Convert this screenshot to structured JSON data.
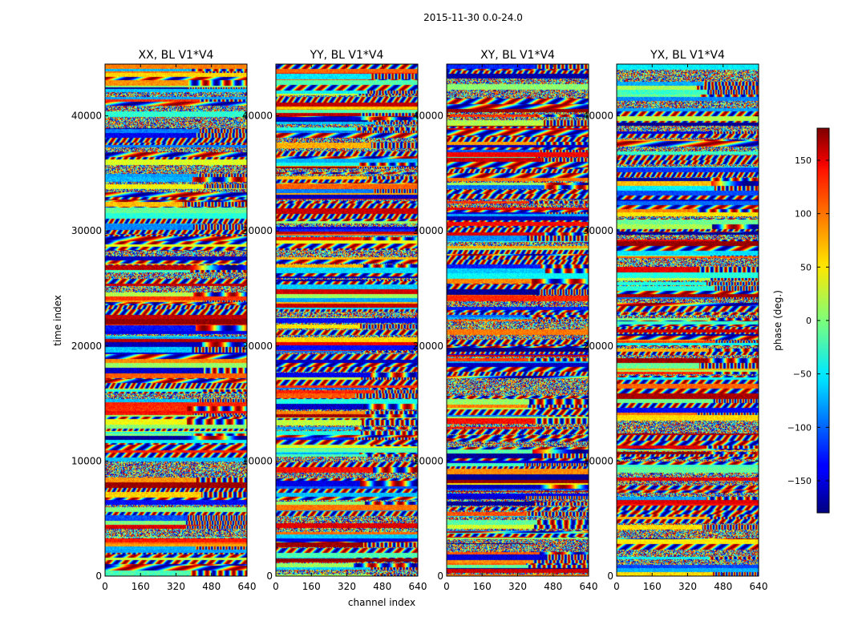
{
  "figure": {
    "suptitle": "2015-11-30 0.0-24.0"
  },
  "chart_data": {
    "type": "heatmap",
    "xlabel": "channel index",
    "ylabel": "time index",
    "xlim": [
      0,
      640
    ],
    "ylim": [
      0,
      44500
    ],
    "x_ticks": [
      0,
      160,
      320,
      480,
      640
    ],
    "y_ticks": [
      0,
      10000,
      20000,
      30000,
      40000
    ],
    "panels": [
      {
        "title": "XX, BL V1*V4",
        "baseline": "V1*V4",
        "polarization": "XX"
      },
      {
        "title": "YY, BL V1*V4",
        "baseline": "V1*V4",
        "polarization": "YY"
      },
      {
        "title": "XY, BL V1*V4",
        "baseline": "V1*V4",
        "polarization": "XY"
      },
      {
        "title": "YX, BL V1*V4",
        "baseline": "V1*V4",
        "polarization": "YX"
      }
    ],
    "colorbar": {
      "label": "phase (deg.)",
      "range": [
        -180,
        180
      ],
      "ticks": [
        -150,
        -100,
        -50,
        0,
        50,
        100,
        150
      ],
      "colormap": "jet"
    }
  }
}
